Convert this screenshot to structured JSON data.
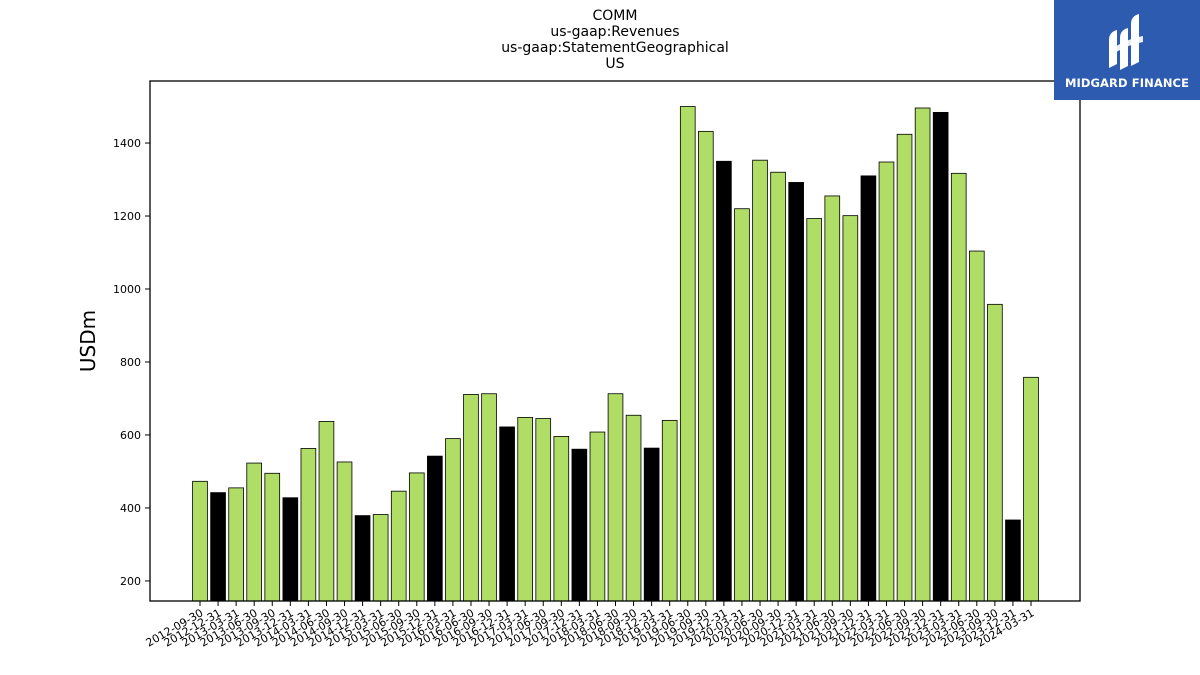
{
  "brand": {
    "name": "MIDGARD FINANCE",
    "color": "#2d5bb0"
  },
  "chart_data": {
    "type": "bar",
    "title_lines": [
      "COMM",
      "us-gaap:Revenues",
      "us-gaap:StatementGeographical",
      "US"
    ],
    "ylabel": "USDm",
    "xlabel": "",
    "ylim": [
      145,
      1570
    ],
    "yticks": [
      200,
      400,
      600,
      800,
      1000,
      1200,
      1400
    ],
    "colors": {
      "quarter": "#b0dd66",
      "year_end": "#000000",
      "edge": "#000000"
    },
    "categories": [
      "2012-09-30",
      "2012-12-31",
      "2013-03-31",
      "2013-06-30",
      "2013-09-30",
      "2013-12-31",
      "2014-03-31",
      "2014-06-30",
      "2014-09-30",
      "2014-12-31",
      "2015-03-31",
      "2015-06-30",
      "2015-09-30",
      "2015-12-31",
      "2016-03-31",
      "2016-06-30",
      "2016-09-30",
      "2016-12-31",
      "2017-03-31",
      "2017-06-30",
      "2017-09-30",
      "2017-12-31",
      "2018-03-31",
      "2018-06-30",
      "2018-09-30",
      "2018-12-31",
      "2019-03-31",
      "2019-06-30",
      "2019-09-30",
      "2019-12-31",
      "2020-03-31",
      "2020-06-30",
      "2020-09-30",
      "2020-12-31",
      "2021-03-31",
      "2021-06-30",
      "2021-09-30",
      "2021-12-31",
      "2022-03-31",
      "2022-06-30",
      "2022-09-30",
      "2022-12-31",
      "2023-03-31",
      "2023-06-30",
      "2023-09-30",
      "2023-12-31",
      "2024-03-31"
    ],
    "values": [
      473,
      442,
      455,
      523,
      495,
      428,
      563,
      637,
      526,
      379,
      382,
      446,
      496,
      542,
      590,
      711,
      713,
      622,
      648,
      645,
      596,
      561,
      608,
      713,
      654,
      564,
      640,
      1500,
      1432,
      1350,
      1220,
      1353,
      1320,
      1292,
      1193,
      1255,
      1201,
      1310,
      1348,
      1424,
      1496,
      1484,
      1317,
      1104,
      958,
      367,
      758
    ],
    "year_end": [
      false,
      true,
      false,
      false,
      false,
      true,
      false,
      false,
      false,
      true,
      false,
      false,
      false,
      true,
      false,
      false,
      false,
      true,
      false,
      false,
      false,
      true,
      false,
      false,
      false,
      true,
      false,
      false,
      false,
      true,
      false,
      false,
      false,
      true,
      false,
      false,
      false,
      true,
      false,
      false,
      false,
      true,
      false,
      false,
      false,
      true,
      false
    ]
  }
}
